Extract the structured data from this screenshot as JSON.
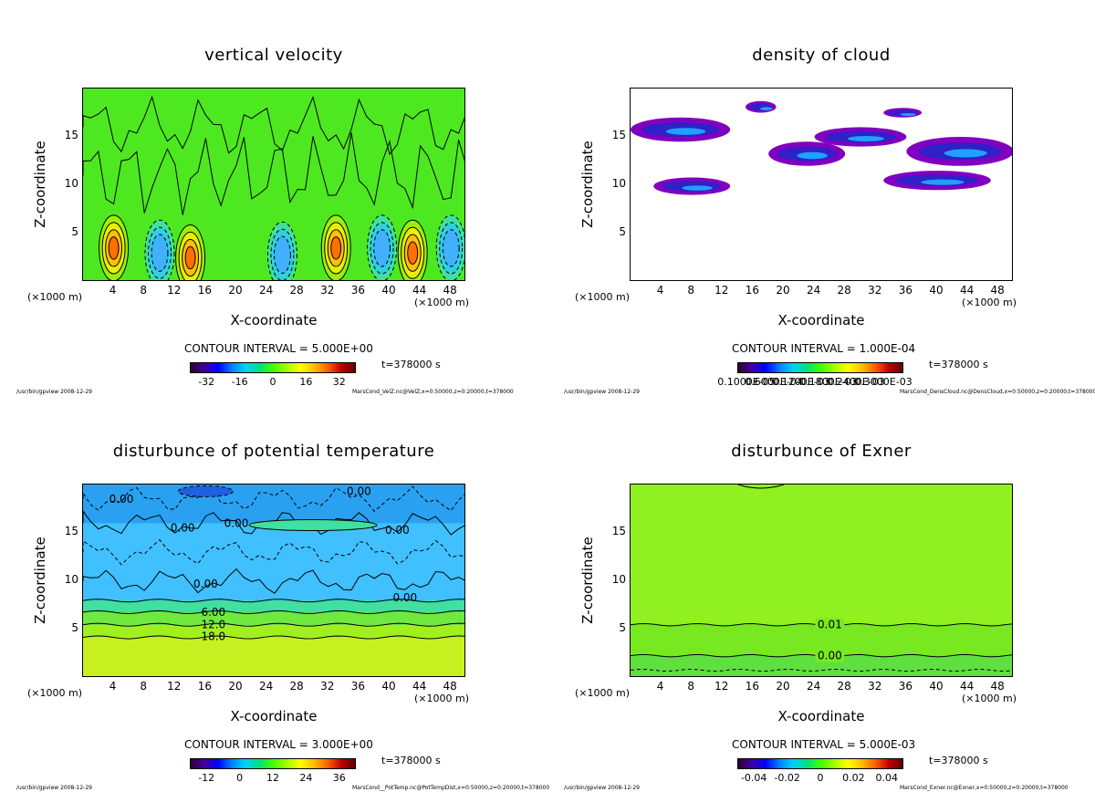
{
  "common": {
    "ylabel": "Z-coordinate",
    "xlabel": "X-coordinate",
    "unit_left": "(×1000 m)",
    "unit_right": "(×1000 m)",
    "time": "t=378000 s",
    "footer_left": "/usr/bin/gpview   2008-12-29",
    "x_ticks": [
      "4",
      "8",
      "12",
      "16",
      "20",
      "24",
      "28",
      "32",
      "36",
      "40",
      "44",
      "48"
    ],
    "y_ticks": [
      "5",
      "10",
      "15"
    ]
  },
  "chart_data": [
    {
      "type": "heatmap",
      "title": "vertical velocity",
      "xlabel": "X-coordinate",
      "ylabel": "Z-coordinate",
      "xlim": [
        0,
        50
      ],
      "ylim": [
        0,
        20
      ],
      "contour_interval": "CONTOUR INTERVAL = 5.000E+00",
      "colorbar_ticks": [
        "-32",
        "-16",
        "0",
        "16",
        "32"
      ],
      "colorbar_range": [
        -40,
        40
      ],
      "footer": "MarsCond_VelZ.nc@VelZ,x=0:50000,z=0:20000,t=378000",
      "features": [
        {
          "x": 4,
          "z": 3.5,
          "sign": 1
        },
        {
          "x": 10,
          "z": 3,
          "sign": -1
        },
        {
          "x": 14,
          "z": 2.5,
          "sign": 1
        },
        {
          "x": 26,
          "z": 2.8,
          "sign": -1
        },
        {
          "x": 33,
          "z": 3.5,
          "sign": 1
        },
        {
          "x": 39,
          "z": 3.5,
          "sign": -1
        },
        {
          "x": 43,
          "z": 3,
          "sign": 1
        },
        {
          "x": 48,
          "z": 3.5,
          "sign": -1
        }
      ]
    },
    {
      "type": "heatmap",
      "title": "density of cloud",
      "xlabel": "X-coordinate",
      "ylabel": "Z-coordinate",
      "xlim": [
        0,
        50
      ],
      "ylim": [
        0,
        20
      ],
      "contour_interval": "CONTOUR INTERVAL = 1.000E-04",
      "colorbar_ticks": [
        "0.1000E-05",
        "0.6000E-04",
        "0.1200E-03",
        "0.1800E-03",
        "0.2400E-03",
        "0.3000E-03"
      ],
      "footer": "MarsCond_DensCloud.nc@DensCloud,x=0:50000,z=0:20000,t=378000",
      "features": [
        {
          "x": 3,
          "z": 9,
          "w": 10,
          "h": 1.8
        },
        {
          "x": 0,
          "z": 14.5,
          "w": 13,
          "h": 2.5
        },
        {
          "x": 18,
          "z": 12,
          "w": 10,
          "h": 2.5
        },
        {
          "x": 33,
          "z": 9.5,
          "w": 14,
          "h": 2
        },
        {
          "x": 36,
          "z": 12,
          "w": 14,
          "h": 3
        },
        {
          "x": 24,
          "z": 14,
          "w": 12,
          "h": 2
        },
        {
          "x": 15,
          "z": 17.5,
          "w": 4,
          "h": 1.2
        },
        {
          "x": 33,
          "z": 17,
          "w": 5,
          "h": 1
        }
      ]
    },
    {
      "type": "heatmap",
      "title": "disturbunce of potential temperature",
      "xlabel": "X-coordinate",
      "ylabel": "Z-coordinate",
      "xlim": [
        0,
        50
      ],
      "ylim": [
        0,
        20
      ],
      "contour_interval": "CONTOUR INTERVAL = 3.000E+00",
      "colorbar_ticks": [
        "-12",
        "0",
        "12",
        "24",
        "36"
      ],
      "colorbar_range": [
        -18,
        42
      ],
      "footer": "MarsCond__PotTemp.nc@PotTempDist,x=0:50000,z=0:20000,t=378000",
      "contour_labels": [
        {
          "text": "0.00",
          "x": 5,
          "z": 18.5
        },
        {
          "text": "0.00",
          "x": 36,
          "z": 19.3
        },
        {
          "text": "0.00",
          "x": 13,
          "z": 15.5
        },
        {
          "text": "0.00",
          "x": 20,
          "z": 16
        },
        {
          "text": "0.00",
          "x": 41,
          "z": 15.3
        },
        {
          "text": "0.00",
          "x": 16,
          "z": 9.7
        },
        {
          "text": "0.00",
          "x": 42,
          "z": 8.3
        },
        {
          "text": "6.00",
          "x": 17,
          "z": 6.8
        },
        {
          "text": "12.0",
          "x": 17,
          "z": 5.5
        },
        {
          "text": "18.0",
          "x": 17,
          "z": 4.3
        }
      ]
    },
    {
      "type": "heatmap",
      "title": "disturbunce of Exner",
      "xlabel": "X-coordinate",
      "ylabel": "Z-coordinate",
      "xlim": [
        0,
        50
      ],
      "ylim": [
        0,
        20
      ],
      "contour_interval": "CONTOUR INTERVAL = 5.000E-03",
      "colorbar_ticks": [
        "-0.04",
        "-0.02",
        "0",
        "0.02",
        "0.04"
      ],
      "colorbar_range": [
        -0.05,
        0.05
      ],
      "footer": "MarsCond_Exner.nc@Exner,x=0:50000,z=0:20000,t=378000",
      "contour_labels": [
        {
          "text": "0.01",
          "x": 26,
          "z": 5.5
        },
        {
          "text": "0.00",
          "x": 26,
          "z": 2.3
        }
      ]
    }
  ]
}
